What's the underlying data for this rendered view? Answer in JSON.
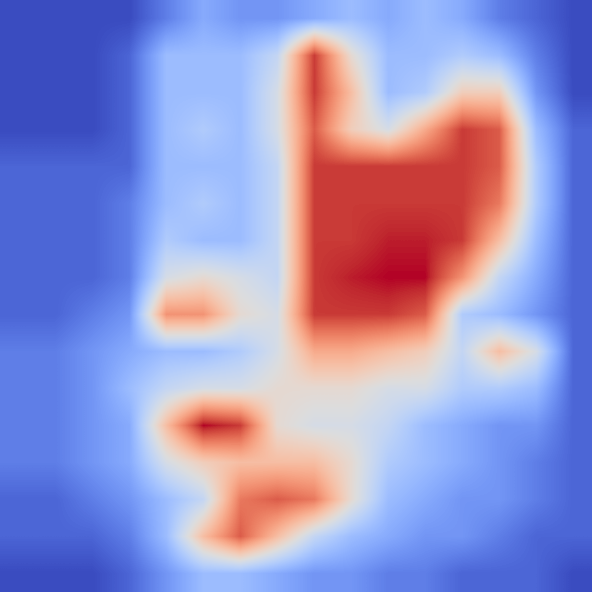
{
  "chart_data": {
    "type": "heatmap",
    "color": "coolwarm",
    "tick_labels": false,
    "cells": [
      [
        0.05,
        0.05,
        0.05,
        0.05,
        0.15,
        0.25,
        0.2,
        0.2,
        0.25,
        0.3,
        0.25,
        0.3,
        0.25,
        0.15,
        0.1,
        0.05
      ],
      [
        0.05,
        0.05,
        0.05,
        0.1,
        0.3,
        0.3,
        0.3,
        0.4,
        0.85,
        0.5,
        0.3,
        0.3,
        0.35,
        0.3,
        0.15,
        0.05
      ],
      [
        0.05,
        0.05,
        0.05,
        0.1,
        0.3,
        0.3,
        0.3,
        0.45,
        0.85,
        0.6,
        0.3,
        0.35,
        0.55,
        0.55,
        0.2,
        0.05
      ],
      [
        0.05,
        0.05,
        0.05,
        0.1,
        0.3,
        0.35,
        0.3,
        0.45,
        0.8,
        0.55,
        0.45,
        0.65,
        0.85,
        0.8,
        0.3,
        0.1
      ],
      [
        0.1,
        0.1,
        0.1,
        0.1,
        0.3,
        0.3,
        0.3,
        0.4,
        0.85,
        0.85,
        0.85,
        0.85,
        0.85,
        0.8,
        0.35,
        0.1
      ],
      [
        0.1,
        0.1,
        0.1,
        0.15,
        0.3,
        0.35,
        0.3,
        0.4,
        0.85,
        0.85,
        0.85,
        0.85,
        0.85,
        0.75,
        0.35,
        0.1
      ],
      [
        0.1,
        0.1,
        0.1,
        0.15,
        0.35,
        0.3,
        0.3,
        0.4,
        0.85,
        0.85,
        0.88,
        0.88,
        0.85,
        0.6,
        0.3,
        0.1
      ],
      [
        0.1,
        0.1,
        0.1,
        0.15,
        0.45,
        0.5,
        0.45,
        0.4,
        0.85,
        0.88,
        0.9,
        0.9,
        0.7,
        0.4,
        0.25,
        0.1
      ],
      [
        0.1,
        0.1,
        0.15,
        0.2,
        0.7,
        0.7,
        0.5,
        0.45,
        0.85,
        0.85,
        0.85,
        0.8,
        0.35,
        0.3,
        0.2,
        0.1
      ],
      [
        0.15,
        0.15,
        0.2,
        0.25,
        0.3,
        0.3,
        0.35,
        0.45,
        0.65,
        0.65,
        0.6,
        0.55,
        0.4,
        0.6,
        0.45,
        0.1
      ],
      [
        0.15,
        0.15,
        0.2,
        0.3,
        0.4,
        0.45,
        0.45,
        0.5,
        0.5,
        0.5,
        0.45,
        0.45,
        0.35,
        0.35,
        0.3,
        0.1
      ],
      [
        0.15,
        0.15,
        0.2,
        0.25,
        0.6,
        0.9,
        0.85,
        0.5,
        0.45,
        0.45,
        0.4,
        0.3,
        0.25,
        0.2,
        0.2,
        0.1
      ],
      [
        0.15,
        0.15,
        0.2,
        0.25,
        0.45,
        0.55,
        0.6,
        0.6,
        0.6,
        0.5,
        0.35,
        0.3,
        0.25,
        0.2,
        0.15,
        0.1
      ],
      [
        0.1,
        0.1,
        0.15,
        0.2,
        0.3,
        0.4,
        0.75,
        0.8,
        0.75,
        0.5,
        0.3,
        0.25,
        0.2,
        0.2,
        0.15,
        0.1
      ],
      [
        0.1,
        0.1,
        0.1,
        0.15,
        0.3,
        0.6,
        0.8,
        0.6,
        0.4,
        0.3,
        0.25,
        0.2,
        0.2,
        0.15,
        0.1,
        0.1
      ],
      [
        0.05,
        0.05,
        0.05,
        0.1,
        0.2,
        0.3,
        0.3,
        0.25,
        0.2,
        0.2,
        0.15,
        0.15,
        0.1,
        0.1,
        0.1,
        0.05
      ]
    ]
  }
}
